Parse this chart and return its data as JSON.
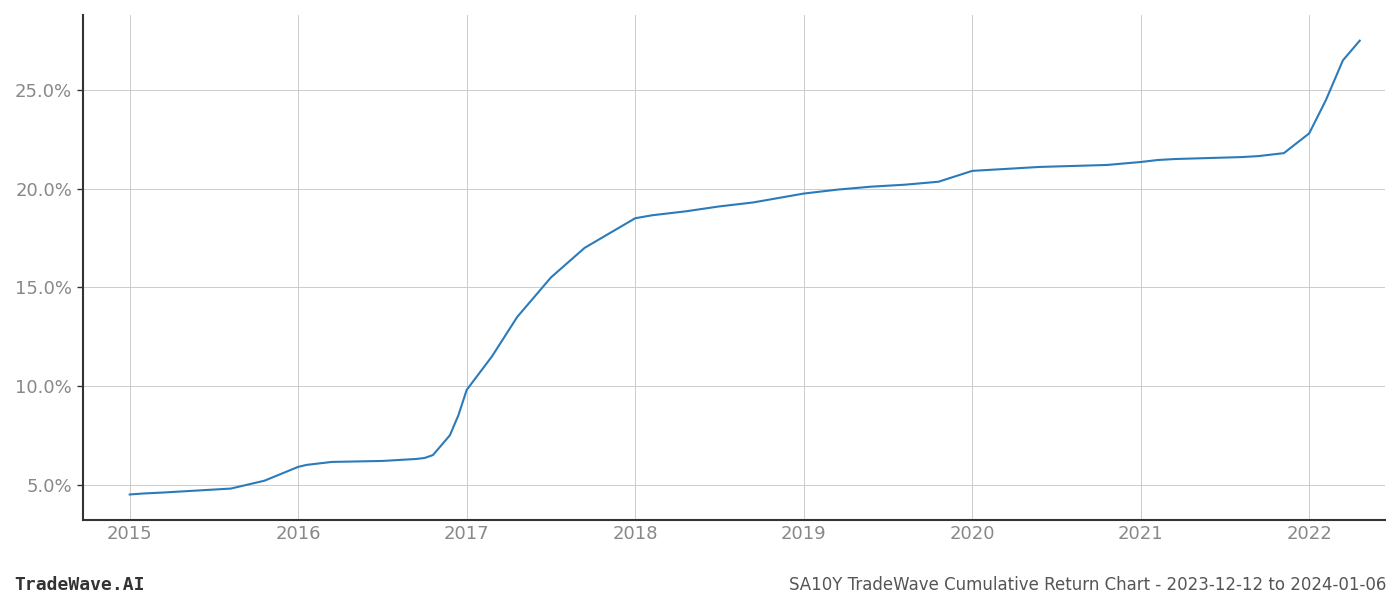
{
  "title": "SA10Y TradeWave Cumulative Return Chart - 2023-12-12 to 2024-01-06",
  "watermark": "TradeWave.AI",
  "line_color": "#2b7bba",
  "line_width": 1.5,
  "background_color": "#ffffff",
  "grid_color": "#cccccc",
  "x_years": [
    2015.0,
    2015.08,
    2015.2,
    2015.4,
    2015.6,
    2015.8,
    2016.0,
    2016.05,
    2016.1,
    2016.15,
    2016.2,
    2016.5,
    2016.6,
    2016.7,
    2016.75,
    2016.8,
    2016.9,
    2016.95,
    2017.0,
    2017.15,
    2017.3,
    2017.5,
    2017.7,
    2017.9,
    2018.0,
    2018.1,
    2018.3,
    2018.5,
    2018.7,
    2018.9,
    2019.0,
    2019.2,
    2019.4,
    2019.6,
    2019.8,
    2020.0,
    2020.2,
    2020.4,
    2020.6,
    2020.8,
    2021.0,
    2021.1,
    2021.2,
    2021.4,
    2021.6,
    2021.7,
    2021.75,
    2021.85,
    2022.0,
    2022.1,
    2022.2,
    2022.3
  ],
  "y_values": [
    4.5,
    4.55,
    4.6,
    4.7,
    4.8,
    5.2,
    5.9,
    6.0,
    6.05,
    6.1,
    6.15,
    6.2,
    6.25,
    6.3,
    6.35,
    6.5,
    7.5,
    8.5,
    9.8,
    11.5,
    13.5,
    15.5,
    17.0,
    18.0,
    18.5,
    18.65,
    18.85,
    19.1,
    19.3,
    19.6,
    19.75,
    19.95,
    20.1,
    20.2,
    20.35,
    20.9,
    21.0,
    21.1,
    21.15,
    21.2,
    21.35,
    21.45,
    21.5,
    21.55,
    21.6,
    21.65,
    21.7,
    21.8,
    22.8,
    24.5,
    26.5,
    27.5
  ],
  "xtick_labels": [
    "2015",
    "2016",
    "2017",
    "2018",
    "2019",
    "2020",
    "2021",
    "2022"
  ],
  "xtick_positions": [
    2015,
    2016,
    2017,
    2018,
    2019,
    2020,
    2021,
    2022
  ],
  "ytick_labels": [
    "5.0%",
    "10.0%",
    "15.0%",
    "20.0%",
    "25.0%"
  ],
  "ytick_positions": [
    5.0,
    10.0,
    15.0,
    20.0,
    25.0
  ],
  "xlim": [
    2014.72,
    2022.45
  ],
  "ylim": [
    3.2,
    28.8
  ],
  "title_fontsize": 12,
  "tick_fontsize": 13,
  "watermark_fontsize": 13
}
